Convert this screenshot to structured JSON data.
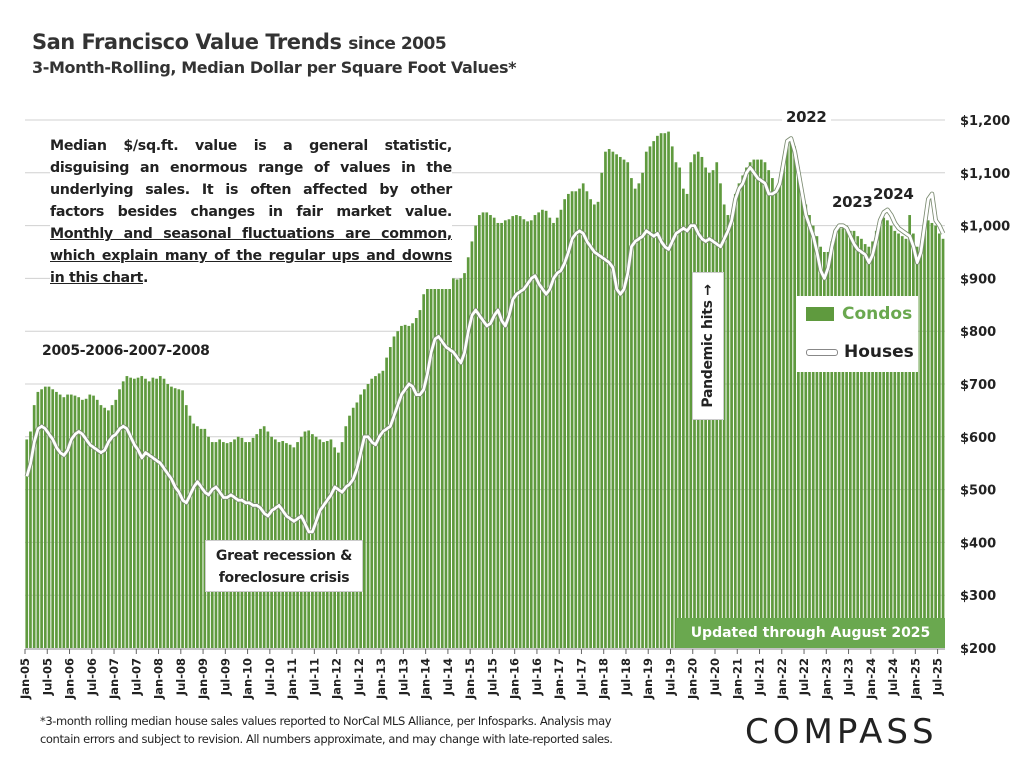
{
  "header": {
    "title": "San Francisco Value Trends",
    "title_suffix": "since 2005",
    "subtitle": "3-Month-Rolling, Median Dollar per Square Foot Values*"
  },
  "annotations": {
    "paragraph_plain": "Median $/sq.ft. value is a general statistic, disguising an enormous range of values in the underlying sales. It is often affected by other factors besides changes in fair market value.",
    "paragraph_underlined": "Monthly and seasonal fluctuations are common, which explain many of the regular ups and downs in this chart",
    "period_label": "2005-2006-2007-2008",
    "recession_line1": "Great recession &",
    "recession_line2": "foreclosure crisis",
    "pandemic": "Pandemic hits →",
    "year_2022": "2022",
    "year_2023": "2023",
    "year_2024": "2024",
    "updated": "Updated through August 2025"
  },
  "footer": {
    "note_line1": "*3-month rolling median house sales values reported to NorCal MLS Alliance, per Infosparks. Analysis may",
    "note_line2": "contain errors and subject to revision. All numbers approximate, and may change with late-reported sales.",
    "logo": "COMPASS"
  },
  "colors": {
    "condos": "#5f9a3e",
    "houses": "#ffffff",
    "banner": "#6aa84f",
    "grid": "#d0d0d0"
  },
  "chart_data": {
    "type": "bar+line",
    "x_start": "Jan-05",
    "x_end": "Aug-25",
    "xticks": [
      "Jan-05",
      "Jul-05",
      "Jan-06",
      "Jul-06",
      "Jan-07",
      "Jul-07",
      "Jan-08",
      "Jul-08",
      "Jan-09",
      "Jul-09",
      "Jan-10",
      "Jul-10",
      "Jan-11",
      "Jul-11",
      "Jan-12",
      "Jul-12",
      "Jan-13",
      "Jul-13",
      "Jan-14",
      "Jul-14",
      "Jan-15",
      "Jul-15",
      "Jan-16",
      "Jul-16",
      "Jan-17",
      "Jul-17",
      "Jan-18",
      "Jul-18",
      "Jan-19",
      "Jul-19",
      "Jan-20",
      "Jul-20",
      "Jan-21",
      "Jul-21",
      "Jan-22",
      "Jul-22",
      "Jan-23",
      "Jul-23",
      "Jan-24",
      "Jul-24",
      "Jan-25",
      "Jul-25"
    ],
    "yticks": [
      "$200",
      "$300",
      "$400",
      "$500",
      "$600",
      "$700",
      "$800",
      "$900",
      "$1,000",
      "$1,100",
      "$1,200"
    ],
    "ylim": [
      200,
      1200
    ],
    "y_axis_side": "right",
    "grid": true,
    "legend_placement": "right",
    "series": [
      {
        "name": "Condos",
        "type": "bar",
        "values": [
          595,
          610,
          660,
          685,
          690,
          695,
          695,
          690,
          685,
          680,
          675,
          680,
          680,
          678,
          675,
          670,
          672,
          680,
          678,
          670,
          660,
          655,
          650,
          660,
          670,
          690,
          705,
          715,
          712,
          710,
          712,
          715,
          710,
          705,
          712,
          710,
          715,
          710,
          700,
          695,
          692,
          690,
          688,
          660,
          640,
          625,
          620,
          615,
          615,
          600,
          590,
          590,
          595,
          590,
          588,
          590,
          595,
          600,
          598,
          590,
          590,
          598,
          605,
          615,
          620,
          610,
          600,
          595,
          590,
          592,
          588,
          585,
          580,
          590,
          600,
          610,
          612,
          605,
          600,
          595,
          590,
          592,
          595,
          580,
          570,
          590,
          620,
          640,
          655,
          665,
          680,
          690,
          700,
          710,
          715,
          720,
          725,
          750,
          770,
          790,
          800,
          810,
          812,
          810,
          815,
          825,
          840,
          870,
          880,
          905,
          905,
          905,
          905,
          905,
          902,
          900,
          898,
          900,
          910,
          940,
          970,
          1000,
          1020,
          1025,
          1025,
          1020,
          1015,
          1005,
          1005,
          1010,
          1012,
          1018,
          1020,
          1018,
          1012,
          1008,
          1010,
          1020,
          1025,
          1030,
          1028,
          1015,
          1005,
          1015,
          1030,
          1050,
          1060,
          1065,
          1065,
          1070,
          1080,
          1065,
          1050,
          1040,
          1045,
          1100,
          1140,
          1145,
          1140,
          1135,
          1130,
          1125,
          1120,
          1090,
          1070,
          1080,
          1100,
          1140,
          1150,
          1160,
          1170,
          1175,
          1175,
          1178,
          1150,
          1120,
          1110,
          1070,
          1060,
          1120,
          1135,
          1140,
          1130,
          1110,
          1100,
          1105,
          1120,
          1080,
          1040,
          1020,
          1020,
          1060,
          1080,
          1095,
          1110,
          1120,
          1125,
          1125,
          1125,
          1120,
          1105,
          1090,
          1070,
          1080,
          1120,
          1160,
          1165,
          1150,
          1110,
          1060,
          1040,
          1020,
          1000,
          980,
          960,
          950,
          950,
          970,
          985,
          1000,
          995,
          1000,
          990,
          990,
          980,
          975,
          965,
          960,
          970,
          990,
          1010,
          1015,
          1010,
          1000,
          990,
          985,
          980,
          975,
          1020,
          985,
          960,
          950,
          990,
          1010,
          1005,
          1000,
          985,
          975
        ]
      },
      {
        "name": "Houses",
        "type": "line",
        "values": [
          525,
          550,
          590,
          615,
          620,
          615,
          605,
          595,
          580,
          570,
          565,
          575,
          595,
          605,
          610,
          605,
          595,
          585,
          580,
          575,
          570,
          575,
          590,
          600,
          605,
          615,
          620,
          615,
          600,
          585,
          575,
          560,
          570,
          565,
          560,
          555,
          550,
          540,
          530,
          520,
          505,
          495,
          480,
          475,
          490,
          505,
          515,
          505,
          495,
          490,
          500,
          505,
          495,
          485,
          485,
          490,
          485,
          480,
          480,
          475,
          475,
          470,
          470,
          465,
          455,
          450,
          460,
          465,
          470,
          460,
          450,
          445,
          440,
          445,
          450,
          435,
          420,
          420,
          440,
          460,
          470,
          480,
          490,
          505,
          500,
          495,
          505,
          510,
          520,
          540,
          570,
          600,
          600,
          590,
          585,
          600,
          610,
          615,
          620,
          640,
          660,
          680,
          690,
          700,
          695,
          680,
          680,
          690,
          720,
          760,
          785,
          790,
          780,
          770,
          765,
          760,
          750,
          740,
          760,
          800,
          830,
          840,
          830,
          820,
          810,
          815,
          830,
          840,
          820,
          810,
          830,
          860,
          870,
          875,
          880,
          890,
          900,
          905,
          890,
          880,
          870,
          880,
          900,
          910,
          915,
          930,
          950,
          975,
          985,
          990,
          985,
          970,
          960,
          950,
          945,
          940,
          935,
          930,
          920,
          880,
          870,
          880,
          910,
          960,
          970,
          975,
          980,
          990,
          985,
          980,
          985,
          970,
          960,
          955,
          970,
          985,
          990,
          995,
          990,
          1000,
          1000,
          985,
          975,
          970,
          975,
          970,
          965,
          960,
          975,
          990,
          1010,
          1050,
          1070,
          1080,
          1100,
          1110,
          1100,
          1090,
          1085,
          1080,
          1060,
          1060,
          1065,
          1080,
          1120,
          1160,
          1165,
          1140,
          1100,
          1060,
          1020,
          1000,
          980,
          950,
          915,
          900,
          920,
          960,
          990,
          1000,
          1000,
          995,
          980,
          965,
          955,
          950,
          945,
          930,
          945,
          975,
          1010,
          1025,
          1030,
          1020,
          1005,
          995,
          990,
          985,
          980,
          960,
          930,
          950,
          1000,
          1050,
          1060,
          1010,
          1000,
          985
        ]
      }
    ]
  }
}
